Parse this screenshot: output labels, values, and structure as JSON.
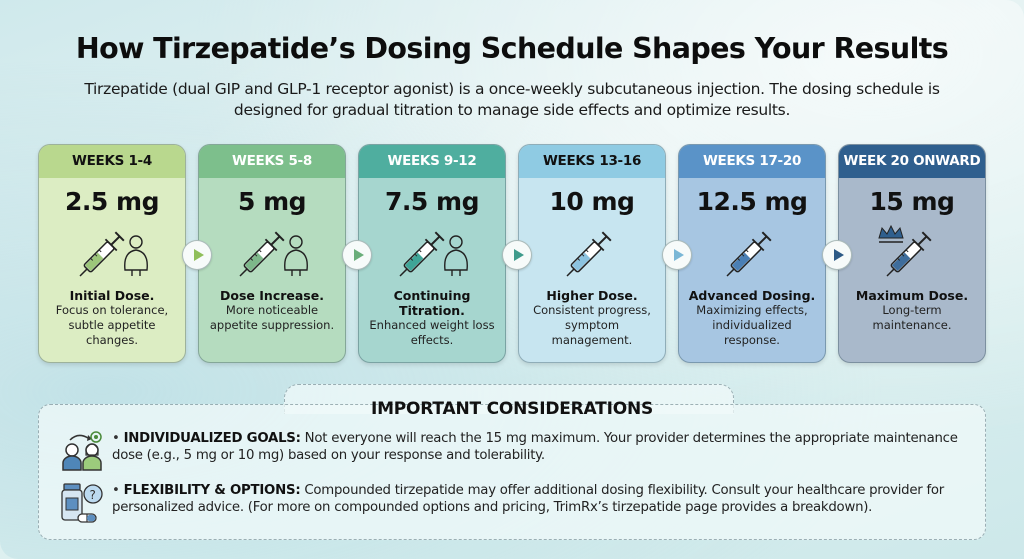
{
  "header": {
    "title": "How Tirzepatide’s Dosing Schedule Shapes Your Results",
    "subtitle": "Tirzepatide (dual GIP and GLP-1 receptor agonist) is a once-weekly subcutaneous injection. The dosing schedule is designed for gradual titration to manage side effects and optimize results."
  },
  "schedule": [
    {
      "period": "WEEKS 1-4",
      "dose": "2.5 mg",
      "label": "Initial Dose.",
      "description": "Focus on tolerance, subtle appetite changes.",
      "icon": "syringe-with-person-icon",
      "head_color": "#b9d88e",
      "head_text": "#111111",
      "body_color": "#dcedc3",
      "arrow_color": "#8fbf5a"
    },
    {
      "period": "WEEKS 5-8",
      "dose": "5 mg",
      "label": "Dose Increase.",
      "description": "More noticeable appetite suppression.",
      "icon": "syringe-with-person-icon",
      "head_color": "#7dbf8c",
      "head_text": "#ffffff",
      "body_color": "#b5dcbf",
      "arrow_color": "#6aae7a"
    },
    {
      "period": "WEEKS 9-12",
      "dose": "7.5 mg",
      "label": "Continuing Titration.",
      "description": "Enhanced weight loss effects.",
      "icon": "syringe-with-person-icon",
      "head_color": "#4fae9f",
      "head_text": "#ffffff",
      "body_color": "#a6d6cf",
      "arrow_color": "#3f9b8c"
    },
    {
      "period": "WEEKS 13-16",
      "dose": "10 mg",
      "label": "Higher Dose.",
      "description": "Consistent progress, symptom management.",
      "icon": "syringe-icon",
      "head_color": "#8fcbe3",
      "head_text": "#111111",
      "body_color": "#c7e5f0",
      "arrow_color": "#7ab7d6"
    },
    {
      "period": "WEEKS 17-20",
      "dose": "12.5 mg",
      "label": "Advanced Dosing.",
      "description": "Maximizing effects, individualized response.",
      "icon": "syringe-icon",
      "head_color": "#5a93c8",
      "head_text": "#ffffff",
      "body_color": "#a7c6e2",
      "arrow_color": "#2d5a86"
    },
    {
      "period": "WEEK 20 ONWARD",
      "dose": "15 mg",
      "label": "Maximum Dose.",
      "description": "Long-term maintenance.",
      "icon": "syringe-with-crown-icon",
      "head_color": "#2f5f8e",
      "head_text": "#ffffff",
      "body_color": "#a9b9cb",
      "arrow_color": "#2d5a86"
    }
  ],
  "considerations": {
    "title": "IMPORTANT CONSIDERATIONS",
    "items": [
      {
        "icon": "people-goal-icon",
        "heading": "INDIVIDUALIZED GOALS:",
        "text": " Not everyone will reach the 15 mg maximum. Your provider determines the appropriate maintenance dose (e.g., 5 mg or 10 mg) based on your response and tolerability."
      },
      {
        "icon": "medication-question-icon",
        "heading": "FLEXIBILITY & OPTIONS:",
        "text": " Compounded tirzepatide may offer additional dosing flexibility. Consult your healthcare provider for personalized advice. (For more on compounded options and pricing, TrimRx’s tirzepatide page provides a breakdown)."
      }
    ]
  }
}
